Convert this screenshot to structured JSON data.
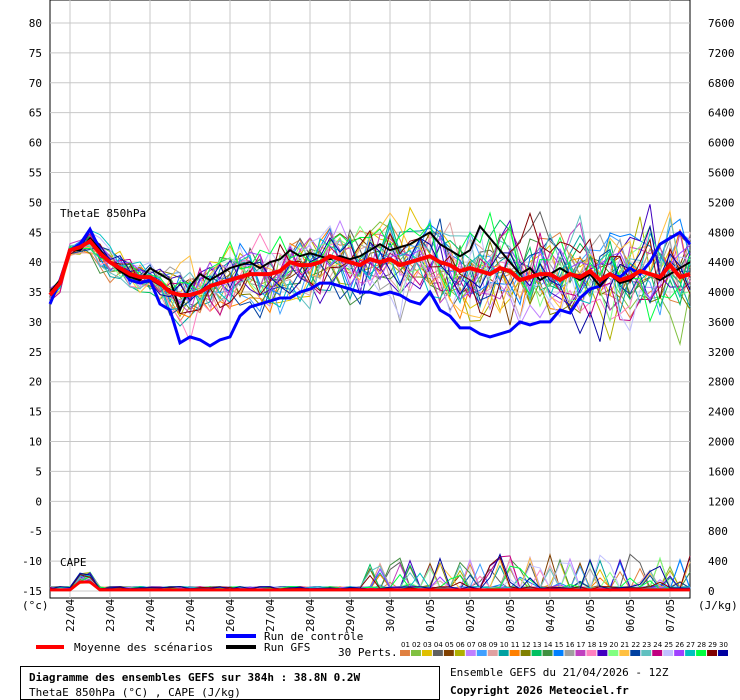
{
  "chart_data": {
    "type": "line",
    "title": "Diagramme des ensembles GEFS sur 384h : 38.8N 0.2W",
    "subtitle": "ThetaE 850hPa (°C) , CAPE (J/kg)",
    "left_axis": {
      "unit": "(°c)",
      "ylim": [
        -15,
        80
      ],
      "ticks": [
        -15,
        -10,
        -5,
        0,
        5,
        10,
        15,
        20,
        25,
        30,
        35,
        40,
        45,
        50,
        55,
        60,
        65,
        70,
        75,
        80
      ]
    },
    "right_axis": {
      "unit": "(J/kg)",
      "ylim": [
        0,
        7600
      ],
      "ticks": [
        0,
        400,
        800,
        1200,
        1600,
        2000,
        2400,
        2800,
        3200,
        3600,
        4000,
        4400,
        4800,
        5200,
        5600,
        6000,
        6400,
        6800,
        7200,
        7600
      ]
    },
    "x_labels": [
      "22/04",
      "23/04",
      "24/04",
      "25/04",
      "26/04",
      "27/04",
      "28/04",
      "29/04",
      "30/04",
      "01/05",
      "02/05",
      "03/05",
      "04/05",
      "05/05",
      "06/05",
      "07/05"
    ],
    "x_label_hours": [
      12,
      36,
      60,
      84,
      108,
      132,
      156,
      180,
      204,
      228,
      252,
      276,
      300,
      324,
      348,
      372
    ],
    "x_range_hours": [
      0,
      384
    ],
    "grid": true,
    "panel_labels": {
      "thetae": "ThetaE 850hPa",
      "cape": "CAPE"
    },
    "series": [
      {
        "name": "Moyenne des scénarios",
        "role": "mean",
        "color": "#ff0000",
        "x": [
          0,
          6,
          12,
          18,
          24,
          30,
          36,
          42,
          48,
          54,
          60,
          66,
          72,
          78,
          84,
          90,
          96,
          102,
          108,
          114,
          120,
          126,
          132,
          138,
          144,
          150,
          156,
          162,
          168,
          174,
          180,
          186,
          192,
          198,
          204,
          210,
          216,
          222,
          228,
          234,
          240,
          246,
          252,
          258,
          264,
          270,
          276,
          282,
          288,
          294,
          300,
          306,
          312,
          318,
          324,
          330,
          336,
          342,
          348,
          354,
          360,
          366,
          372,
          378,
          384
        ],
        "y": [
          34.5,
          36.5,
          42,
          42.5,
          43.5,
          41.5,
          40,
          39,
          38,
          37.5,
          37.5,
          36.5,
          35,
          34.5,
          34.5,
          35,
          36,
          36.5,
          37,
          37.5,
          38,
          38,
          38,
          38.5,
          40,
          39.5,
          39.5,
          40,
          41,
          40.5,
          40,
          39.5,
          40.5,
          40,
          40.5,
          39.5,
          40,
          40.5,
          41,
          40,
          39.5,
          38.5,
          39,
          38.5,
          38,
          39,
          38.5,
          37,
          37.5,
          38,
          38,
          37,
          38,
          37.5,
          38.5,
          37,
          38,
          37,
          37.5,
          38.5,
          38,
          37.5,
          39.5,
          37.5,
          38
        ]
      },
      {
        "name": "Run de contrôle",
        "role": "control",
        "color": "#0000ff",
        "x": [
          0,
          6,
          12,
          18,
          24,
          30,
          36,
          42,
          48,
          54,
          60,
          66,
          72,
          78,
          84,
          90,
          96,
          102,
          108,
          114,
          120,
          126,
          132,
          138,
          144,
          150,
          156,
          162,
          168,
          174,
          180,
          186,
          192,
          198,
          204,
          210,
          216,
          222,
          228,
          234,
          240,
          246,
          252,
          258,
          264,
          270,
          276,
          282,
          288,
          294,
          300,
          306,
          312,
          318,
          324,
          330,
          336,
          342,
          348,
          354,
          360,
          366,
          372,
          378,
          384
        ],
        "y": [
          33,
          37,
          42,
          43,
          45.5,
          42,
          40,
          39,
          37,
          36.5,
          37,
          33,
          32,
          26.5,
          27.5,
          27,
          26,
          27,
          27.5,
          31,
          32.5,
          33,
          33.5,
          34,
          34,
          35,
          35.5,
          36.5,
          36.5,
          36,
          35.5,
          35,
          35,
          34.5,
          35,
          34.5,
          33.5,
          33,
          35,
          32,
          31,
          29,
          29,
          28,
          27.5,
          28,
          28.5,
          30,
          29.5,
          30,
          30,
          32,
          31.5,
          34,
          35.5,
          36,
          38,
          37.5,
          39,
          38,
          40,
          43,
          44,
          45,
          43
        ]
      },
      {
        "name": "Run GFS",
        "role": "gfs",
        "color": "#000000",
        "x": [
          0,
          6,
          12,
          18,
          24,
          30,
          36,
          42,
          48,
          54,
          60,
          66,
          72,
          78,
          84,
          90,
          96,
          102,
          108,
          114,
          120,
          126,
          132,
          138,
          144,
          150,
          156,
          162,
          168,
          174,
          180,
          186,
          192,
          198,
          204,
          210,
          216,
          222,
          228,
          234,
          240,
          246,
          252,
          258,
          264,
          270,
          276,
          282,
          288,
          294,
          300,
          306,
          312,
          318,
          324,
          330,
          336,
          342,
          348,
          354,
          360,
          366,
          372,
          378,
          384
        ],
        "y": [
          35,
          37,
          42,
          42,
          44,
          42,
          40,
          38.5,
          37.5,
          37,
          39,
          38,
          37,
          32,
          36,
          38,
          37,
          38,
          39,
          39.5,
          40,
          39,
          40,
          40.5,
          42,
          41,
          41.5,
          41,
          40.5,
          41,
          40.5,
          41,
          42,
          43,
          42,
          42.5,
          43,
          44,
          45,
          43,
          42,
          41,
          42,
          46,
          44,
          42,
          40,
          38,
          39,
          37,
          38,
          39,
          38,
          37,
          38,
          36,
          38,
          36.5,
          37,
          38.5,
          38,
          37,
          38,
          39,
          40
        ]
      }
    ],
    "legend": [
      {
        "label": "Moyenne des scénarios",
        "color": "#ff0000"
      },
      {
        "label": "Run de contrôle",
        "color": "#0000ff"
      },
      {
        "label": "Run GFS",
        "color": "#000000"
      }
    ],
    "perturbations": {
      "label": "30 Perts.",
      "members": [
        "01",
        "02",
        "03",
        "04",
        "05",
        "06",
        "07",
        "08",
        "09",
        "10",
        "11",
        "12",
        "13",
        "14",
        "15",
        "16",
        "17",
        "18",
        "19",
        "20",
        "21",
        "22",
        "23",
        "24",
        "25",
        "26",
        "27",
        "28",
        "29",
        "30"
      ],
      "colors": [
        "#e08040",
        "#80c040",
        "#e0c000",
        "#606060",
        "#804000",
        "#b0b000",
        "#c080ff",
        "#40a0ff",
        "#e0a0a0",
        "#00a0a0",
        "#ff8000",
        "#808000",
        "#00c060",
        "#409040",
        "#0080ff",
        "#a0a0a0",
        "#c040c0",
        "#ff80c0",
        "#4000c0",
        "#80ff80",
        "#ffc040",
        "#0040a0",
        "#60c0c0",
        "#c00080",
        "#c0c0ff",
        "#a040ff",
        "#00c0c0",
        "#00ff40",
        "#800000",
        "#0000a0"
      ]
    }
  },
  "footer": {
    "title": "Diagramme des ensembles GEFS sur 384h : 38.8N 0.2W",
    "subtitle": "ThetaE 850hPa (°C) , CAPE (J/kg)",
    "ensemble": "Ensemble GEFS du 21/04/2026 - 12Z",
    "copyright": "Copyright 2026 Meteociel.fr"
  }
}
